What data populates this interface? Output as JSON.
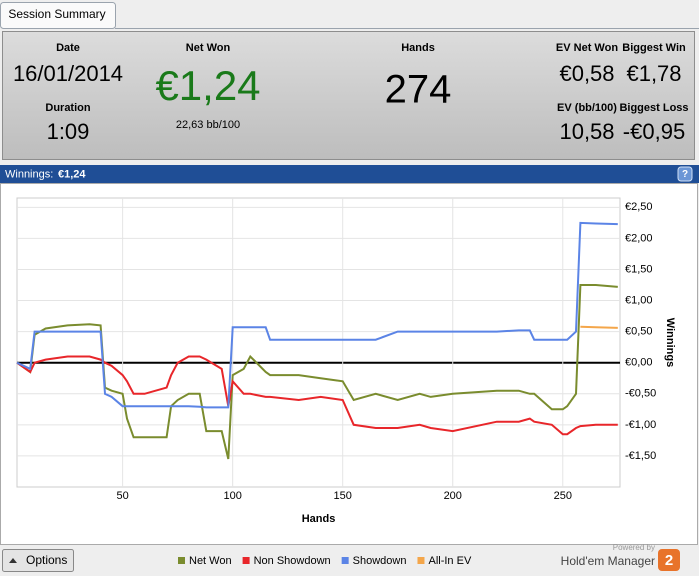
{
  "tab": "Session Summary",
  "summary": {
    "date": {
      "label": "Date",
      "value": "16/01/2014"
    },
    "duration": {
      "label": "Duration",
      "value": "1:09"
    },
    "net_won": {
      "label": "Net Won",
      "value": "€1,24",
      "sub": "22,63 bb/100"
    },
    "hands": {
      "label": "Hands",
      "value": "274"
    },
    "ev_net_won": {
      "label": "EV Net Won",
      "value": "€0,58"
    },
    "biggest_win": {
      "label": "Biggest Win",
      "value": "€1,78"
    },
    "ev_bb100": {
      "label": "EV (bb/100)",
      "value": "10,58"
    },
    "biggest_loss": {
      "label": "Biggest Loss",
      "value": "-€0,95"
    }
  },
  "panel": {
    "label": "Winnings:",
    "value": "€1,24",
    "help": "?"
  },
  "chart_data": {
    "type": "line",
    "xlabel": "Hands",
    "ylabel": "Winnings",
    "x": [
      2,
      8,
      10,
      15,
      25,
      35,
      40,
      42,
      45,
      50,
      52,
      55,
      60,
      70,
      72,
      75,
      80,
      85,
      88,
      95,
      98,
      100,
      105,
      108,
      115,
      117,
      130,
      140,
      150,
      155,
      165,
      175,
      185,
      190,
      200,
      220,
      230,
      235,
      237,
      245,
      250,
      252,
      256,
      258,
      265,
      275
    ],
    "series": [
      {
        "name": "Net Won",
        "color": "#7a8c2e",
        "values": [
          0,
          -0.15,
          0.45,
          0.55,
          0.6,
          0.62,
          0.6,
          -0.4,
          -0.45,
          -0.5,
          -0.9,
          -1.2,
          -1.2,
          -1.2,
          -0.7,
          -0.6,
          -0.5,
          -0.5,
          -1.1,
          -1.1,
          -1.55,
          -0.2,
          -0.1,
          0.1,
          -0.15,
          -0.2,
          -0.2,
          -0.25,
          -0.3,
          -0.6,
          -0.5,
          -0.6,
          -0.5,
          -0.55,
          -0.5,
          -0.45,
          -0.45,
          -0.5,
          -0.5,
          -0.75,
          -0.75,
          -0.7,
          -0.5,
          1.25,
          1.25,
          1.22
        ]
      },
      {
        "name": "Non Showdown",
        "color": "#e8262a",
        "values": [
          0,
          -0.15,
          0,
          0.05,
          0.1,
          0.1,
          0.05,
          0,
          -0.05,
          -0.2,
          -0.3,
          -0.5,
          -0.5,
          -0.4,
          -0.2,
          0,
          0.1,
          0.1,
          0.05,
          -0.1,
          -0.7,
          -0.3,
          -0.5,
          -0.5,
          -0.55,
          -0.55,
          -0.6,
          -0.55,
          -0.6,
          -1.0,
          -1.05,
          -1.05,
          -1.0,
          -1.05,
          -1.1,
          -0.95,
          -0.95,
          -0.9,
          -0.95,
          -1.0,
          -1.15,
          -1.15,
          -1.05,
          -1.02,
          -1.0,
          -1.0
        ]
      },
      {
        "name": "Showdown",
        "color": "#5b84e6",
        "values": [
          0,
          -0.1,
          0.5,
          0.5,
          0.5,
          0.5,
          0.5,
          -0.5,
          -0.55,
          -0.7,
          -0.7,
          -0.7,
          -0.7,
          -0.7,
          -0.7,
          -0.7,
          -0.7,
          -0.71,
          -0.72,
          -0.72,
          -0.72,
          0.57,
          0.57,
          0.57,
          0.57,
          0.37,
          0.37,
          0.37,
          0.37,
          0.37,
          0.37,
          0.5,
          0.5,
          0.5,
          0.5,
          0.5,
          0.52,
          0.52,
          0.37,
          0.37,
          0.37,
          0.37,
          0.5,
          2.25,
          2.24,
          2.23
        ]
      },
      {
        "name": "All-In EV",
        "color": "#f4a64a",
        "values": [
          null,
          null,
          null,
          null,
          null,
          null,
          null,
          null,
          null,
          null,
          null,
          null,
          null,
          null,
          null,
          null,
          null,
          null,
          null,
          null,
          null,
          null,
          null,
          null,
          null,
          null,
          null,
          null,
          null,
          null,
          null,
          null,
          null,
          null,
          null,
          null,
          null,
          null,
          null,
          null,
          null,
          null,
          null,
          0.58,
          0.57,
          0.56
        ]
      }
    ],
    "xlim": [
      2,
      276
    ],
    "ylim": [
      -2,
      2.65
    ],
    "xticks": [
      50,
      100,
      150,
      200,
      250
    ],
    "yticks": [
      {
        "value": 2.5,
        "label": "€2,50"
      },
      {
        "value": 2,
        "label": "€2,00"
      },
      {
        "value": 1.5,
        "label": "€1,50"
      },
      {
        "value": 1,
        "label": "€1,00"
      },
      {
        "value": 0.5,
        "label": "€0,50"
      },
      {
        "value": 0,
        "label": "€0,00"
      },
      {
        "value": -0.5,
        "label": "-€0,50"
      },
      {
        "value": -1,
        "label": "-€1,00"
      },
      {
        "value": -1.5,
        "label": "-€1,50"
      }
    ],
    "grid": true
  },
  "footer": {
    "button": "Options",
    "powered_by": "Powered by",
    "brand": "Hold'em Manager",
    "badge": "2"
  }
}
